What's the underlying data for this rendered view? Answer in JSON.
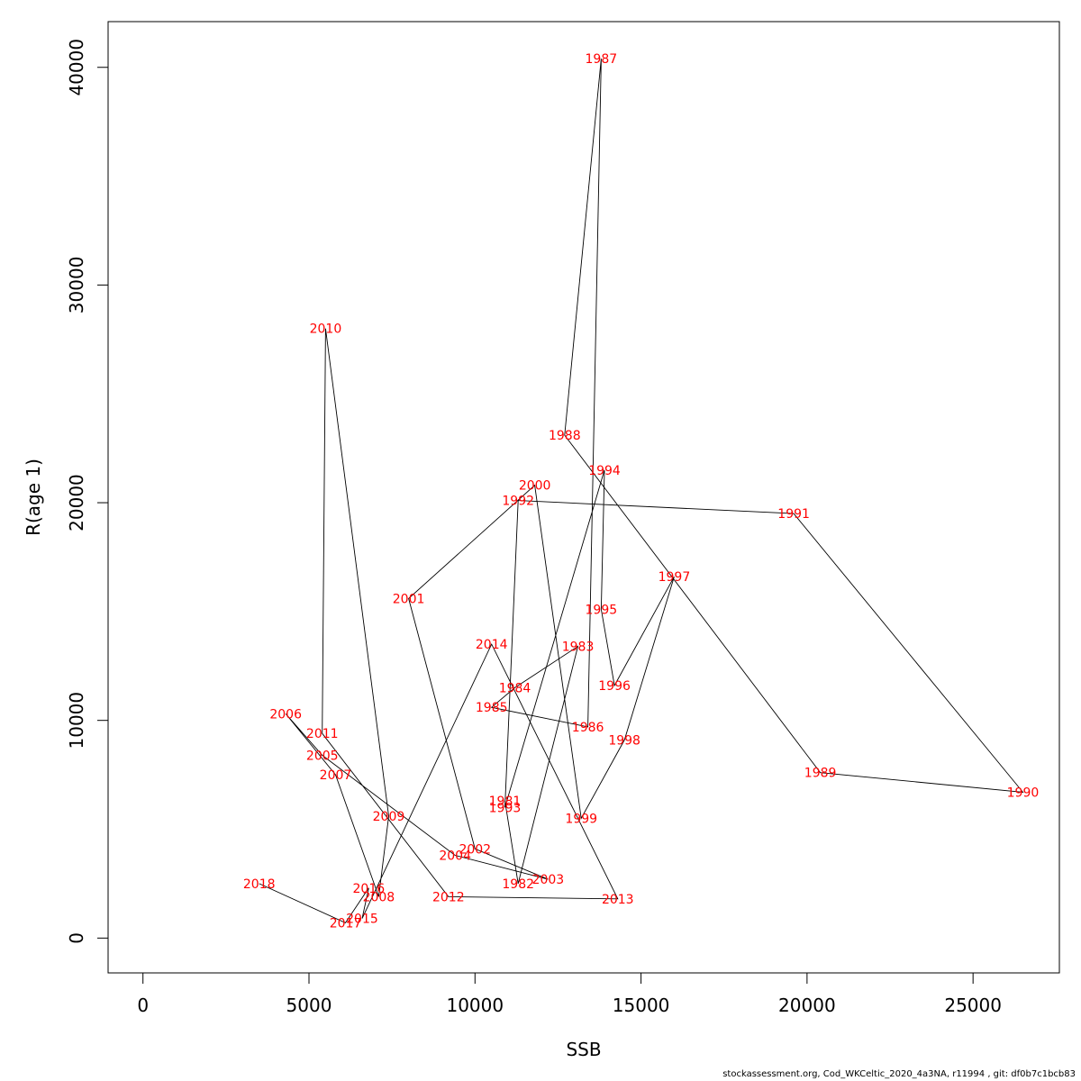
{
  "chart_data": {
    "type": "line",
    "title": "",
    "xlabel": "SSB",
    "ylabel": "R(age 1)",
    "xlim": [
      -1050,
      27600
    ],
    "ylim": [
      -1600,
      42100
    ],
    "x_ticks": [
      0,
      5000,
      10000,
      15000,
      20000,
      25000
    ],
    "y_ticks": [
      0,
      10000,
      20000,
      30000,
      40000
    ],
    "grid": false,
    "line_color": "#000000",
    "label_color": "#ff0000",
    "points": [
      {
        "year": "1981",
        "ssb": 10900,
        "r": 6300
      },
      {
        "year": "1982",
        "ssb": 11300,
        "r": 2500
      },
      {
        "year": "1983",
        "ssb": 13100,
        "r": 13400
      },
      {
        "year": "1984",
        "ssb": 11200,
        "r": 11500
      },
      {
        "year": "1985",
        "ssb": 10500,
        "r": 10600
      },
      {
        "year": "1986",
        "ssb": 13400,
        "r": 9700
      },
      {
        "year": "1987",
        "ssb": 13800,
        "r": 40400
      },
      {
        "year": "1988",
        "ssb": 12700,
        "r": 23100
      },
      {
        "year": "1989",
        "ssb": 20400,
        "r": 7600
      },
      {
        "year": "1990",
        "ssb": 26500,
        "r": 6700
      },
      {
        "year": "1991",
        "ssb": 19600,
        "r": 19500
      },
      {
        "year": "1992",
        "ssb": 11300,
        "r": 20100
      },
      {
        "year": "1993",
        "ssb": 10900,
        "r": 6000
      },
      {
        "year": "1994",
        "ssb": 13900,
        "r": 21500
      },
      {
        "year": "1995",
        "ssb": 13800,
        "r": 15100
      },
      {
        "year": "1996",
        "ssb": 14200,
        "r": 11600
      },
      {
        "year": "1997",
        "ssb": 16000,
        "r": 16600
      },
      {
        "year": "1998",
        "ssb": 14500,
        "r": 9100
      },
      {
        "year": "1999",
        "ssb": 13200,
        "r": 5500
      },
      {
        "year": "2000",
        "ssb": 11800,
        "r": 20800
      },
      {
        "year": "2001",
        "ssb": 8000,
        "r": 15600
      },
      {
        "year": "2002",
        "ssb": 10000,
        "r": 4100
      },
      {
        "year": "2003",
        "ssb": 12200,
        "r": 2700
      },
      {
        "year": "2004",
        "ssb": 9400,
        "r": 3800
      },
      {
        "year": "2005",
        "ssb": 5400,
        "r": 8400
      },
      {
        "year": "2006",
        "ssb": 4300,
        "r": 10300
      },
      {
        "year": "2007",
        "ssb": 5800,
        "r": 7500
      },
      {
        "year": "2008",
        "ssb": 7100,
        "r": 1900
      },
      {
        "year": "2009",
        "ssb": 7400,
        "r": 5600
      },
      {
        "year": "2010",
        "ssb": 5500,
        "r": 28000
      },
      {
        "year": "2011",
        "ssb": 5400,
        "r": 9400
      },
      {
        "year": "2012",
        "ssb": 9200,
        "r": 1900
      },
      {
        "year": "2013",
        "ssb": 14300,
        "r": 1800
      },
      {
        "year": "2014",
        "ssb": 10500,
        "r": 13500
      },
      {
        "year": "2015",
        "ssb": 6600,
        "r": 900
      },
      {
        "year": "2016",
        "ssb": 6800,
        "r": 2300
      },
      {
        "year": "2017",
        "ssb": 6100,
        "r": 700
      },
      {
        "year": "2018",
        "ssb": 3500,
        "r": 2500
      }
    ]
  },
  "footer": {
    "text": "stockassessment.org, Cod_WKCeltic_2020_4a3NA, r11994 , git: df0b7c1bcb83"
  }
}
